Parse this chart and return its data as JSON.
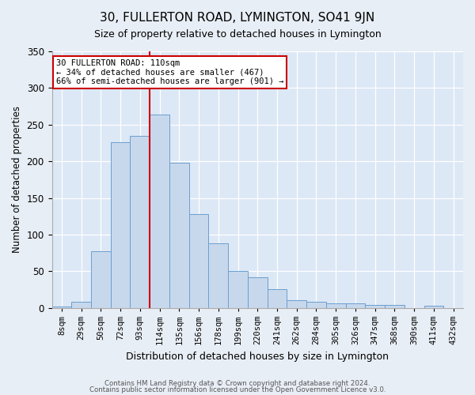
{
  "title": "30, FULLERTON ROAD, LYMINGTON, SO41 9JN",
  "subtitle": "Size of property relative to detached houses in Lymington",
  "xlabel": "Distribution of detached houses by size in Lymington",
  "ylabel": "Number of detached properties",
  "bar_color": "#c8d8ec",
  "bar_edge_color": "#6a9fd0",
  "categories": [
    "8sqm",
    "29sqm",
    "50sqm",
    "72sqm",
    "93sqm",
    "114sqm",
    "135sqm",
    "156sqm",
    "178sqm",
    "199sqm",
    "220sqm",
    "241sqm",
    "262sqm",
    "284sqm",
    "305sqm",
    "326sqm",
    "347sqm",
    "368sqm",
    "390sqm",
    "411sqm",
    "432sqm"
  ],
  "values": [
    2,
    8,
    77,
    226,
    235,
    264,
    198,
    128,
    88,
    50,
    42,
    25,
    10,
    8,
    6,
    6,
    4,
    4,
    0,
    3,
    0
  ],
  "vline_index": 4.5,
  "vline_color": "#cc0000",
  "annotation_line1": "30 FULLERTON ROAD: 110sqm",
  "annotation_line2": "← 34% of detached houses are smaller (467)",
  "annotation_line3": "66% of semi-detached houses are larger (901) →",
  "annotation_box_color": "#ffffff",
  "annotation_box_edge": "#cc0000",
  "ylim": [
    0,
    350
  ],
  "yticks": [
    0,
    50,
    100,
    150,
    200,
    250,
    300,
    350
  ],
  "footer1": "Contains HM Land Registry data © Crown copyright and database right 2024.",
  "footer2": "Contains public sector information licensed under the Open Government Licence v3.0.",
  "bg_color": "#e8eef5",
  "plot_bg_color": "#dce8f5"
}
